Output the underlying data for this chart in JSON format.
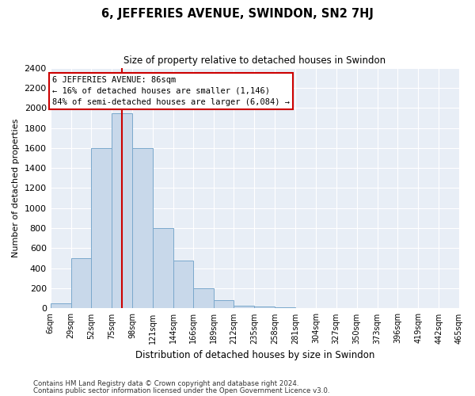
{
  "title": "6, JEFFERIES AVENUE, SWINDON, SN2 7HJ",
  "subtitle": "Size of property relative to detached houses in Swindon",
  "xlabel": "Distribution of detached houses by size in Swindon",
  "ylabel": "Number of detached properties",
  "footnote1": "Contains HM Land Registry data © Crown copyright and database right 2024.",
  "footnote2": "Contains public sector information licensed under the Open Government Licence v3.0.",
  "annotation_line1": "6 JEFFERIES AVENUE: 86sqm",
  "annotation_line2": "← 16% of detached houses are smaller (1,146)",
  "annotation_line3": "84% of semi-detached houses are larger (6,084) →",
  "property_size": 86,
  "bar_color": "#c8d8ea",
  "bar_edge_color": "#7aa8cc",
  "vline_color": "#cc0000",
  "bg_color": "#e8eef6",
  "fig_bg_color": "#ffffff",
  "grid_color": "#ffffff",
  "bins": [
    6,
    29,
    52,
    75,
    98,
    121,
    144,
    166,
    189,
    212,
    235,
    258,
    281,
    304,
    327,
    350,
    373,
    396,
    419,
    442,
    465
  ],
  "counts": [
    50,
    500,
    1600,
    1950,
    1600,
    800,
    475,
    200,
    80,
    30,
    20,
    10,
    0,
    0,
    5,
    0,
    0,
    0,
    0,
    0
  ],
  "ylim": [
    0,
    2400
  ],
  "yticks": [
    0,
    200,
    400,
    600,
    800,
    1000,
    1200,
    1400,
    1600,
    1800,
    2000,
    2200,
    2400
  ]
}
